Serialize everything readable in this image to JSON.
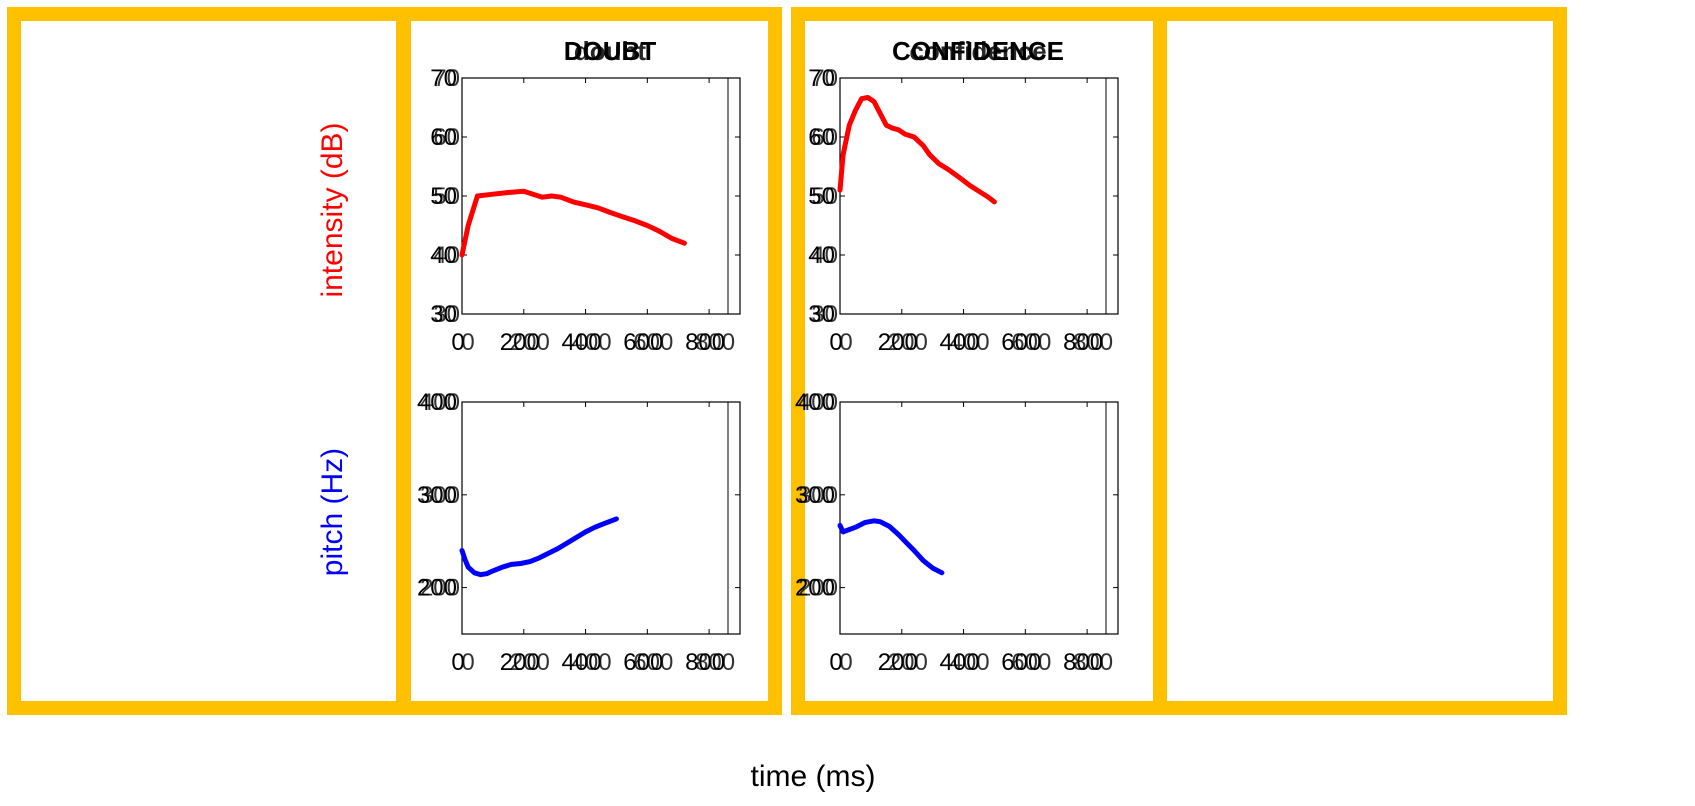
{
  "colors": {
    "frame": "#FFC000",
    "intensity": "#FF0000",
    "pitch": "#0000FF",
    "axis": "#000000"
  },
  "labels": {
    "intensity_prefix": "intensity (",
    "intensity_unit": "dB",
    "intensity_suffix": ")",
    "pitch_prefix": "pitch (",
    "pitch_unit": "Hz",
    "pitch_suffix": ")",
    "x_label": "time (ms)"
  },
  "columns": [
    {
      "title_main": "DOUBT",
      "title_ghost": "doubt"
    },
    {
      "title_main": "CONFIDENCE",
      "title_ghost": "confidence"
    }
  ],
  "chart_data": [
    {
      "type": "line",
      "title": "DOUBT",
      "xlabel": "time (ms)",
      "ylabel": "intensity (dB)",
      "xlim": [
        0,
        900
      ],
      "ylim": [
        30,
        70
      ],
      "xticks": [
        0,
        200,
        400,
        600,
        800
      ],
      "yticks": [
        30,
        40,
        50,
        60,
        70
      ],
      "series": [
        {
          "color": "#FF0000",
          "x": [
            0,
            20,
            50,
            100,
            150,
            200,
            230,
            260,
            290,
            320,
            360,
            400,
            440,
            480,
            520,
            560,
            600,
            640,
            680,
            720
          ],
          "y": [
            40,
            45,
            50,
            50.3,
            50.6,
            50.8,
            50.3,
            49.8,
            50,
            49.8,
            49,
            48.5,
            48,
            47.2,
            46.5,
            45.8,
            45,
            44,
            42.8,
            42
          ]
        }
      ]
    },
    {
      "type": "line",
      "title": "CONFIDENCE",
      "xlabel": "time (ms)",
      "ylabel": "intensity (dB)",
      "xlim": [
        0,
        900
      ],
      "ylim": [
        30,
        70
      ],
      "xticks": [
        0,
        200,
        400,
        600,
        800
      ],
      "yticks": [
        30,
        40,
        50,
        60,
        70
      ],
      "series": [
        {
          "color": "#FF0000",
          "x": [
            0,
            10,
            30,
            50,
            70,
            90,
            110,
            130,
            150,
            170,
            190,
            210,
            240,
            270,
            290,
            320,
            350,
            390,
            420,
            450,
            480,
            500
          ],
          "y": [
            51,
            57,
            62,
            64.5,
            66.5,
            66.7,
            66,
            64,
            62,
            61.5,
            61.2,
            60.5,
            60,
            58.5,
            57,
            55.5,
            54.5,
            53,
            51.8,
            50.8,
            49.8,
            49
          ]
        }
      ]
    },
    {
      "type": "line",
      "title": "DOUBT",
      "xlabel": "time (ms)",
      "ylabel": "pitch (Hz)",
      "xlim": [
        0,
        900
      ],
      "ylim": [
        150,
        400
      ],
      "xticks": [
        0,
        200,
        400,
        600,
        800
      ],
      "yticks": [
        200,
        300,
        400
      ],
      "series": [
        {
          "color": "#0000FF",
          "x": [
            0,
            10,
            20,
            40,
            60,
            80,
            100,
            130,
            160,
            190,
            220,
            250,
            280,
            310,
            340,
            370,
            400,
            430,
            460,
            500
          ],
          "y": [
            240,
            230,
            222,
            216,
            214,
            215,
            218,
            222,
            225,
            226,
            228,
            232,
            237,
            242,
            248,
            254,
            260,
            265,
            269,
            274
          ]
        }
      ]
    },
    {
      "type": "line",
      "title": "CONFIDENCE",
      "xlabel": "time (ms)",
      "ylabel": "pitch (Hz)",
      "xlim": [
        0,
        900
      ],
      "ylim": [
        150,
        400
      ],
      "xticks": [
        0,
        200,
        400,
        600,
        800
      ],
      "yticks": [
        200,
        300,
        400
      ],
      "series": [
        {
          "color": "#0000FF",
          "x": [
            0,
            10,
            25,
            50,
            80,
            110,
            130,
            160,
            190,
            210,
            240,
            270,
            300,
            330
          ],
          "y": [
            267,
            260,
            262,
            265,
            270,
            272,
            271,
            266,
            257,
            250,
            240,
            229,
            221,
            216
          ]
        }
      ]
    }
  ]
}
